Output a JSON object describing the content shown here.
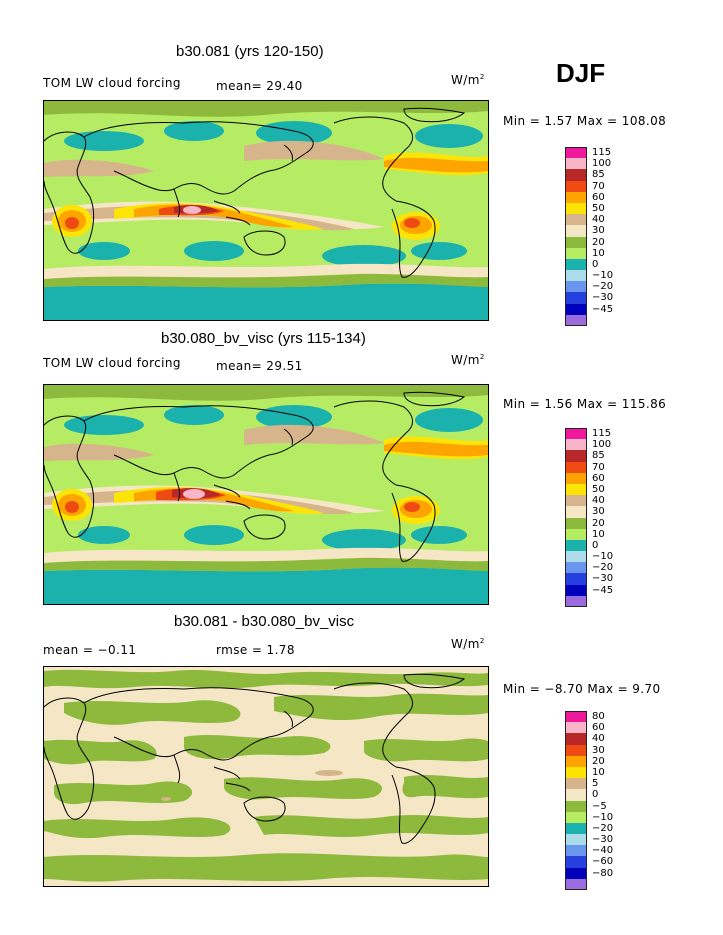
{
  "season": "DJF",
  "panels": [
    {
      "title": "b30.081 (yrs 120-150)",
      "left_label": "TOM LW cloud forcing",
      "mid_label": "mean=  29.40",
      "units": "W/m",
      "units_sup": "2",
      "minmax": "Min =    1.57 Max = 108.08",
      "legend": [
        {
          "label": "115",
          "color": "#f0189b"
        },
        {
          "label": "100",
          "color": "#f8b6c8"
        },
        {
          "label": "85",
          "color": "#b82828"
        },
        {
          "label": "70",
          "color": "#ef4a12"
        },
        {
          "label": "60",
          "color": "#fda400"
        },
        {
          "label": "50",
          "color": "#fce406"
        },
        {
          "label": "40",
          "color": "#d6b48c"
        },
        {
          "label": "30",
          "color": "#f5e6c5"
        },
        {
          "label": "20",
          "color": "#8db93c"
        },
        {
          "label": "10",
          "color": "#b6ec64"
        },
        {
          "label": "0",
          "color": "#1bb2ae"
        },
        {
          "label": "−10",
          "color": "#acdcea"
        },
        {
          "label": "−20",
          "color": "#6a96ee"
        },
        {
          "label": "−30",
          "color": "#2640e0"
        },
        {
          "label": "−45",
          "color": "#0000bc"
        },
        {
          "label": "",
          "color": "#9a6ce0"
        }
      ]
    },
    {
      "title": "b30.080_bv_visc (yrs 115-134)",
      "left_label": "TOM LW cloud forcing",
      "mid_label": "mean=  29.51",
      "units": "W/m",
      "units_sup": "2",
      "minmax": "Min =    1.56 Max = 115.86",
      "legend": [
        {
          "label": "115",
          "color": "#f0189b"
        },
        {
          "label": "100",
          "color": "#f8b6c8"
        },
        {
          "label": "85",
          "color": "#b82828"
        },
        {
          "label": "70",
          "color": "#ef4a12"
        },
        {
          "label": "60",
          "color": "#fda400"
        },
        {
          "label": "50",
          "color": "#fce406"
        },
        {
          "label": "40",
          "color": "#d6b48c"
        },
        {
          "label": "30",
          "color": "#f5e6c5"
        },
        {
          "label": "20",
          "color": "#8db93c"
        },
        {
          "label": "10",
          "color": "#b6ec64"
        },
        {
          "label": "0",
          "color": "#1bb2ae"
        },
        {
          "label": "−10",
          "color": "#acdcea"
        },
        {
          "label": "−20",
          "color": "#6a96ee"
        },
        {
          "label": "−30",
          "color": "#2640e0"
        },
        {
          "label": "−45",
          "color": "#0000bc"
        },
        {
          "label": "",
          "color": "#9a6ce0"
        }
      ]
    },
    {
      "title": "b30.081 - b30.080_bv_visc",
      "left_label": "mean =   −0.11",
      "mid_label": "rmse =    1.78",
      "units": "W/m",
      "units_sup": "2",
      "minmax": "Min =  −8.70 Max =    9.70",
      "legend": [
        {
          "label": "80",
          "color": "#f0189b"
        },
        {
          "label": "60",
          "color": "#f8b6c8"
        },
        {
          "label": "40",
          "color": "#b82828"
        },
        {
          "label": "30",
          "color": "#ef4a12"
        },
        {
          "label": "20",
          "color": "#fda400"
        },
        {
          "label": "10",
          "color": "#fce406"
        },
        {
          "label": "5",
          "color": "#d6b48c"
        },
        {
          "label": "0",
          "color": "#f5e6c5"
        },
        {
          "label": "−5",
          "color": "#8db93c"
        },
        {
          "label": "−10",
          "color": "#b6ec64"
        },
        {
          "label": "−20",
          "color": "#1bb2ae"
        },
        {
          "label": "−30",
          "color": "#acdcea"
        },
        {
          "label": "−40",
          "color": "#6a96ee"
        },
        {
          "label": "−60",
          "color": "#2640e0"
        },
        {
          "label": "−80",
          "color": "#0000bc"
        },
        {
          "label": "",
          "color": "#9a6ce0"
        }
      ]
    }
  ],
  "chart_data": [
    {
      "type": "heatmap",
      "title": "b30.081 (yrs 120-150)",
      "variable": "TOM LW cloud forcing",
      "units": "W/m2",
      "mean": 29.4,
      "min": 1.57,
      "max": 108.08,
      "contour_levels": [
        -45,
        -30,
        -20,
        -10,
        0,
        10,
        20,
        30,
        40,
        50,
        60,
        70,
        85,
        100,
        115
      ]
    },
    {
      "type": "heatmap",
      "title": "b30.080_bv_visc (yrs 115-134)",
      "variable": "TOM LW cloud forcing",
      "units": "W/m2",
      "mean": 29.51,
      "min": 1.56,
      "max": 115.86,
      "contour_levels": [
        -45,
        -30,
        -20,
        -10,
        0,
        10,
        20,
        30,
        40,
        50,
        60,
        70,
        85,
        100,
        115
      ]
    },
    {
      "type": "heatmap",
      "title": "b30.081 - b30.080_bv_visc",
      "units": "W/m2",
      "mean": -0.11,
      "rmse": 1.78,
      "min": -8.7,
      "max": 9.7,
      "contour_levels": [
        -80,
        -60,
        -40,
        -30,
        -20,
        -10,
        -5,
        0,
        5,
        10,
        20,
        30,
        40,
        60,
        80
      ]
    }
  ]
}
